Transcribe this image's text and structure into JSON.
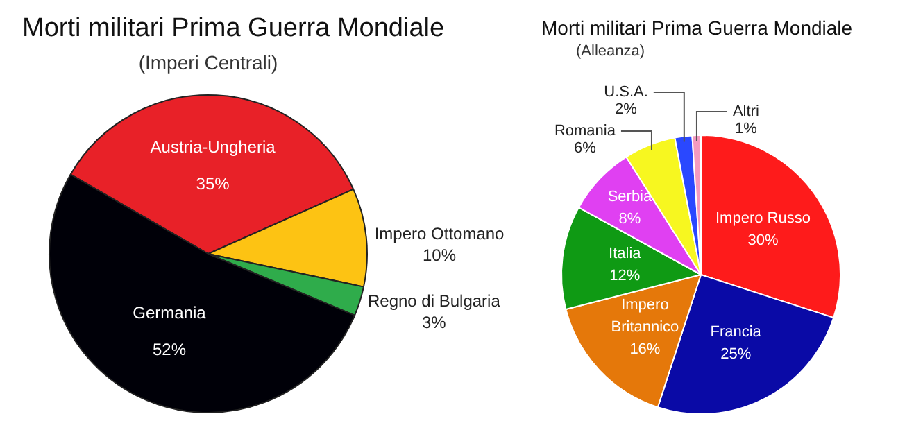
{
  "chart_data": [
    {
      "type": "pie",
      "title": "Morti militari Prima Guerra Mondiale",
      "subtitle": "(Imperi Centrali)",
      "categories": [
        "Austria-Ungheria",
        "Impero Ottomano",
        "Regno di Bulgaria",
        "Germania"
      ],
      "values": [
        35,
        10,
        3,
        52
      ],
      "value_labels": [
        "35%",
        "10%",
        "3%",
        "52%"
      ],
      "colors": [
        "#e82128",
        "#fdc313",
        "#2fac4b",
        "#000008"
      ]
    },
    {
      "type": "pie",
      "title": "Morti militari Prima Guerra Mondiale",
      "subtitle": "(Alleanza)",
      "categories": [
        "Impero Russo",
        "Francia",
        "Impero Britannico",
        "Italia",
        "Serbia",
        "Romania",
        "U.S.A.",
        "Altri"
      ],
      "values": [
        30,
        25,
        16,
        12,
        8,
        6,
        2,
        1
      ],
      "value_labels": [
        "30%",
        "25%",
        "16%",
        "12%",
        "8%",
        "6%",
        "2%",
        "1%"
      ],
      "colors": [
        "#fe1b1b",
        "#0a0aa6",
        "#e5780a",
        "#0f9a14",
        "#e040f2",
        "#f7f720",
        "#2a48ff",
        "#f59ac0"
      ]
    }
  ]
}
